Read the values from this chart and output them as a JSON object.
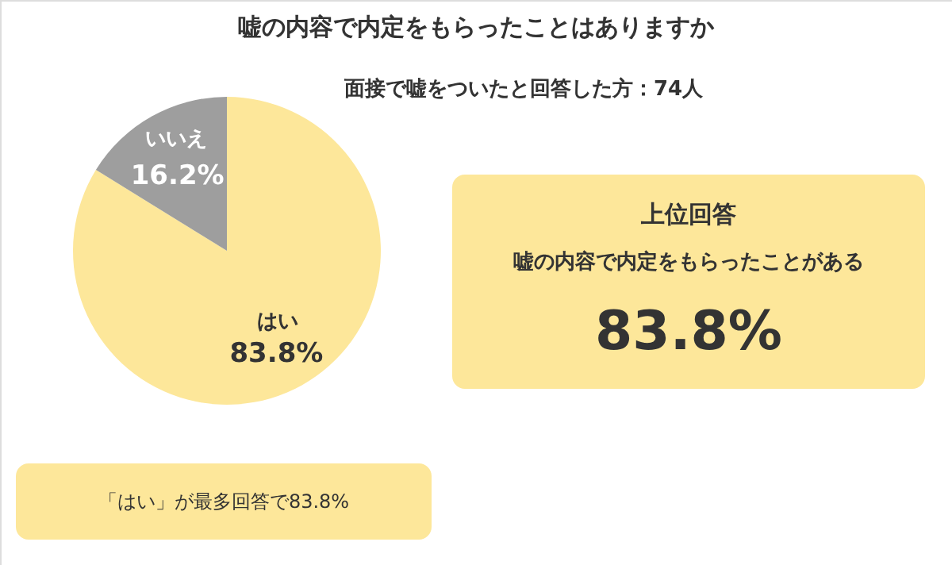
{
  "chart_data": {
    "type": "pie",
    "title": "嘘の内容で内定をもらったことはありますか",
    "subtitle": "面接で嘘をついたと回答した方：74人",
    "categories": [
      "はい",
      "いいえ"
    ],
    "values": [
      83.8,
      16.2
    ],
    "colors": [
      "#fde79a",
      "#9e9e9e"
    ],
    "value_labels": [
      "83.8%",
      "16.2%"
    ],
    "annotations": [
      "上位回答",
      "嘘の内容で内定をもらったことがある",
      "83.8%",
      "「はい」が最多回答で83.8%"
    ]
  }
}
